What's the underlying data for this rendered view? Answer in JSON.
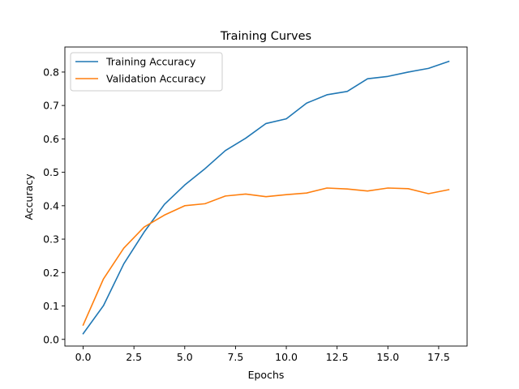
{
  "chart_data": {
    "type": "line",
    "title": "Training Curves",
    "xlabel": "Epochs",
    "ylabel": "Accuracy",
    "xlim": [
      -0.9,
      18.9
    ],
    "ylim": [
      -0.02,
      0.875
    ],
    "xticks": [
      0,
      2.5,
      5,
      7.5,
      10,
      12.5,
      15,
      17.5
    ],
    "xtick_labels": [
      "0.0",
      "2.5",
      "5.0",
      "7.5",
      "10.0",
      "12.5",
      "15.0",
      "17.5"
    ],
    "yticks": [
      0,
      0.1,
      0.2,
      0.3,
      0.4,
      0.5,
      0.6,
      0.7,
      0.8
    ],
    "ytick_labels": [
      "0.0",
      "0.1",
      "0.2",
      "0.3",
      "0.4",
      "0.5",
      "0.6",
      "0.7",
      "0.8"
    ],
    "grid": false,
    "legend_position": "top-left",
    "x": [
      0,
      1,
      2,
      3,
      4,
      5,
      6,
      7,
      8,
      9,
      10,
      11,
      12,
      13,
      14,
      15,
      16,
      17,
      18
    ],
    "series": [
      {
        "name": "Training Accuracy",
        "color": "#1f77b4",
        "values": [
          0.017,
          0.101,
          0.226,
          0.321,
          0.404,
          0.462,
          0.511,
          0.565,
          0.602,
          0.646,
          0.66,
          0.707,
          0.732,
          0.742,
          0.78,
          0.787,
          0.8,
          0.811,
          0.832
        ]
      },
      {
        "name": "Validation Accuracy",
        "color": "#ff7f0e",
        "values": [
          0.043,
          0.181,
          0.273,
          0.336,
          0.372,
          0.4,
          0.406,
          0.429,
          0.435,
          0.427,
          0.433,
          0.438,
          0.453,
          0.45,
          0.444,
          0.453,
          0.451,
          0.436,
          0.448
        ]
      }
    ]
  }
}
